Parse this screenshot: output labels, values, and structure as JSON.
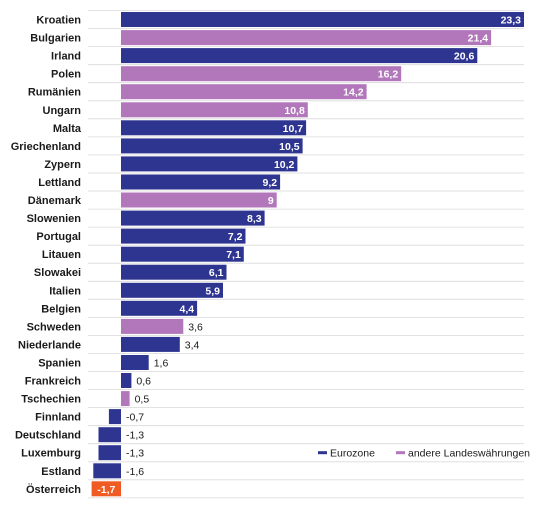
{
  "chart_data": {
    "type": "bar",
    "orientation": "horizontal",
    "categories": [
      "Kroatien",
      "Bulgarien",
      "Irland",
      "Polen",
      "Rumänien",
      "Ungarn",
      "Malta",
      "Griechenland",
      "Zypern",
      "Lettland",
      "Dänemark",
      "Slowenien",
      "Portugal",
      "Litauen",
      "Slowakei",
      "Italien",
      "Belgien",
      "Schweden",
      "Niederlande",
      "Spanien",
      "Frankreich",
      "Tschechien",
      "Finnland",
      "Deutschland",
      "Luxemburg",
      "Estland",
      "Österreich"
    ],
    "values": [
      23.3,
      21.4,
      20.6,
      16.2,
      14.2,
      10.8,
      10.7,
      10.5,
      10.2,
      9.2,
      9,
      8.3,
      7.2,
      7.1,
      6.1,
      5.9,
      4.4,
      3.6,
      3.4,
      1.6,
      0.6,
      0.5,
      -0.7,
      -1.3,
      -1.3,
      -1.6,
      -1.7
    ],
    "value_labels": [
      "23,3",
      "21,4",
      "20,6",
      "16,2",
      "14,2",
      "10,8",
      "10,7",
      "10,5",
      "10,2",
      "9,2",
      "9",
      "8,3",
      "7,2",
      "7,1",
      "6,1",
      "5,9",
      "4,4",
      "3,6",
      "3,4",
      "1,6",
      "0,6",
      "0,5",
      "-0,7",
      "-1,3",
      "-1,3",
      "-1,6",
      "-1,7"
    ],
    "groups": [
      "eurozone",
      "andere",
      "eurozone",
      "andere",
      "andere",
      "andere",
      "eurozone",
      "eurozone",
      "eurozone",
      "eurozone",
      "andere",
      "eurozone",
      "eurozone",
      "eurozone",
      "eurozone",
      "eurozone",
      "eurozone",
      "andere",
      "eurozone",
      "eurozone",
      "eurozone",
      "andere",
      "eurozone",
      "eurozone",
      "eurozone",
      "eurozone",
      "highlight"
    ],
    "highlight_category": "Österreich",
    "colors": {
      "eurozone": "#2e3590",
      "andere": "#b277bb",
      "highlight": "#f05a23",
      "grid": "#d9d9d9"
    },
    "legend": {
      "placement": "bottom-right",
      "items": [
        {
          "key": "eurozone",
          "label": "Eurozone"
        },
        {
          "key": "andere",
          "label": "andere Landeswährungen"
        }
      ]
    },
    "xlim": [
      -2.4,
      23.3
    ],
    "grid": true
  }
}
